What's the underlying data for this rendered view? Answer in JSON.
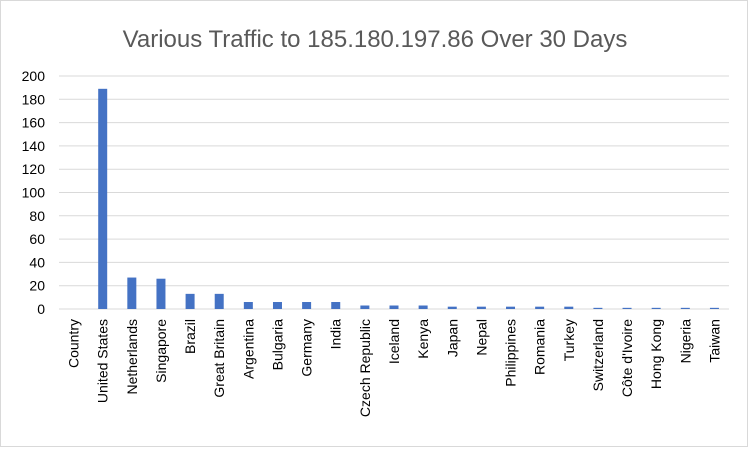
{
  "chart_data": {
    "type": "bar",
    "title": "Various Traffic to 185.180.197.86 Over 30 Days",
    "xlabel": "",
    "ylabel": "",
    "ylim": [
      0,
      200
    ],
    "yticks": [
      0,
      20,
      40,
      60,
      80,
      100,
      120,
      140,
      160,
      180,
      200
    ],
    "grid": true,
    "bar_color": "#4472C4",
    "categories": [
      "Country",
      "United States",
      "Netherlands",
      "Singapore",
      "Brazil",
      "Great Britain",
      "Argentina",
      "Bulgaria",
      "Germany",
      "India",
      "Czech Republic",
      "Iceland",
      "Kenya",
      "Japan",
      "Nepal",
      "Philippines",
      "Romania",
      "Turkey",
      "Switzerland",
      "Côte d'Ivoire",
      "Hong Kong",
      "Nigeria",
      "Taiwan"
    ],
    "values": [
      0,
      189,
      27,
      26,
      13,
      13,
      6,
      6,
      6,
      6,
      3,
      3,
      3,
      2,
      2,
      2,
      2,
      2,
      1,
      1,
      1,
      1,
      1
    ]
  }
}
